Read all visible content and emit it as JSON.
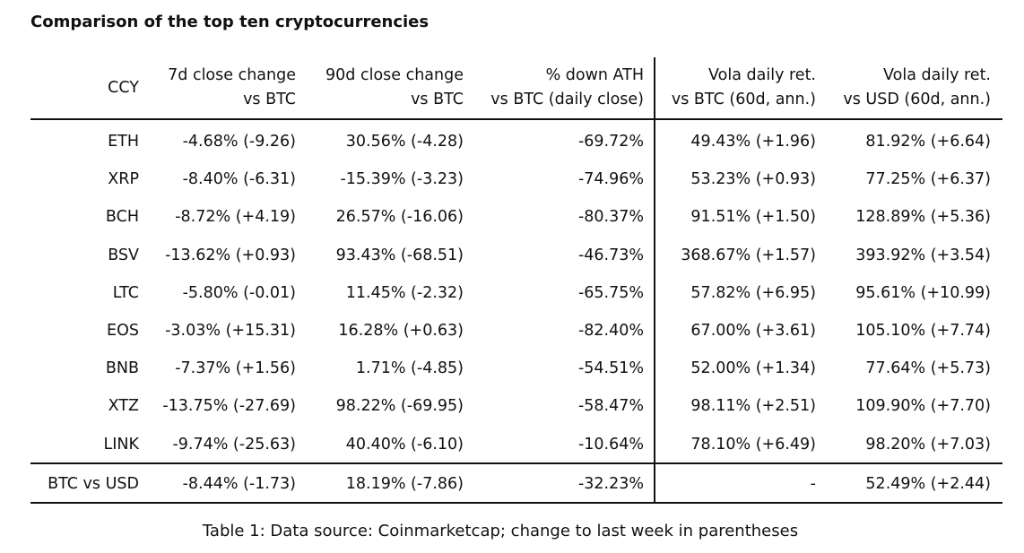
{
  "title": "Comparison of the top ten cryptocurrencies",
  "headers": [
    [
      "CCY"
    ],
    [
      "7d close change",
      "vs BTC"
    ],
    [
      "90d close change",
      "vs BTC"
    ],
    [
      "% down ATH",
      "vs BTC (daily close)"
    ],
    [
      "Vola daily ret.",
      "vs BTC (60d, ann.)"
    ],
    [
      "Vola daily ret.",
      "vs USD (60d, ann.)"
    ]
  ],
  "rows": [
    [
      "ETH",
      "-4.68% (-9.26)",
      "30.56% (-4.28)",
      "-69.72%",
      "49.43% (+1.96)",
      "81.92% (+6.64)"
    ],
    [
      "XRP",
      "-8.40% (-6.31)",
      "-15.39% (-3.23)",
      "-74.96%",
      "53.23% (+0.93)",
      "77.25% (+6.37)"
    ],
    [
      "BCH",
      "-8.72% (+4.19)",
      "26.57% (-16.06)",
      "-80.37%",
      "91.51% (+1.50)",
      "128.89% (+5.36)"
    ],
    [
      "BSV",
      "-13.62% (+0.93)",
      "93.43% (-68.51)",
      "-46.73%",
      "368.67% (+1.57)",
      "393.92% (+3.54)"
    ],
    [
      "LTC",
      "-5.80% (-0.01)",
      "11.45% (-2.32)",
      "-65.75%",
      "57.82% (+6.95)",
      "95.61% (+10.99)"
    ],
    [
      "EOS",
      "-3.03% (+15.31)",
      "16.28% (+0.63)",
      "-82.40%",
      "67.00% (+3.61)",
      "105.10% (+7.74)"
    ],
    [
      "BNB",
      "-7.37% (+1.56)",
      "1.71% (-4.85)",
      "-54.51%",
      "52.00% (+1.34)",
      "77.64% (+5.73)"
    ],
    [
      "XTZ",
      "-13.75% (-27.69)",
      "98.22% (-69.95)",
      "-58.47%",
      "98.11% (+2.51)",
      "109.90% (+7.70)"
    ],
    [
      "LINK",
      "-9.74% (-25.63)",
      "40.40% (-6.10)",
      "-10.64%",
      "78.10% (+6.49)",
      "98.20% (+7.03)"
    ]
  ],
  "footer_row": [
    "BTC vs USD",
    "-8.44% (-1.73)",
    "18.19% (-7.86)",
    "-32.23%",
    "-",
    "52.49% (+2.44)"
  ],
  "caption": "Table 1: Data source: Coinmarketcap; change to last week in parentheses"
}
